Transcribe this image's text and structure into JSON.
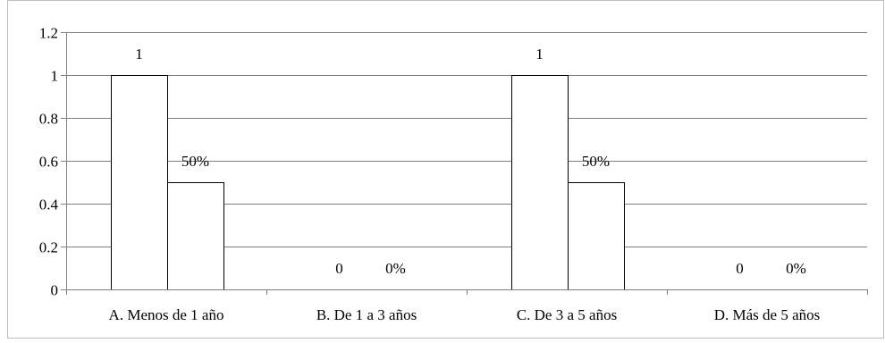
{
  "chart_data": {
    "type": "bar",
    "title": "",
    "xlabel": "",
    "ylabel": "",
    "categories": [
      "A. Menos de 1 año",
      "B. De 1 a 3 años",
      "C. De 3 a 5 años",
      "D. Más de 5 años"
    ],
    "series": [
      {
        "values": [
          1,
          0,
          1,
          0
        ],
        "labels": [
          "1",
          "0",
          "1",
          "0"
        ]
      },
      {
        "values": [
          0.5,
          0,
          0.5,
          0
        ],
        "labels": [
          "50%",
          "0%",
          "50%",
          "0%"
        ]
      }
    ],
    "ylim": [
      0,
      1.2
    ],
    "yticks": [
      "0",
      "0.2",
      "0.4",
      "0.6",
      "0.8",
      "1",
      "1.2"
    ],
    "grid": true,
    "legend": "none",
    "colors": {
      "bar_fill": "#ffffff",
      "bar_stroke": "#000000",
      "grid": "#808080",
      "axis": "#808080"
    }
  }
}
